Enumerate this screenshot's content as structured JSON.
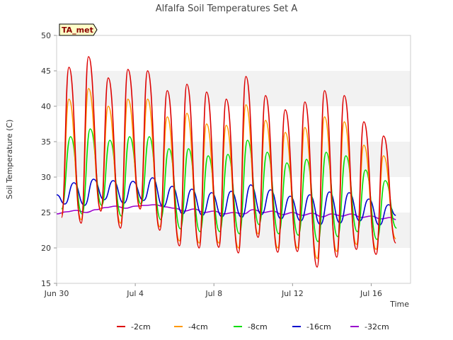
{
  "chart_data": {
    "type": "line",
    "title": "Alfalfa Soil Temperatures Set A",
    "xlabel": "Time",
    "ylabel": "Soil Temperature (C)",
    "badge": "TA_met",
    "ylim": [
      15,
      50
    ],
    "xlim": [
      "2019-06-30",
      "2019-07-18"
    ],
    "yticks": [
      15,
      20,
      25,
      30,
      35,
      40,
      45,
      50
    ],
    "xticks": [
      {
        "label": "Jun 30",
        "date": "2019-06-30"
      },
      {
        "label": "Jul 4",
        "date": "2019-07-04"
      },
      {
        "label": "Jul 8",
        "date": "2019-07-08"
      },
      {
        "label": "Jul 12",
        "date": "2019-07-12"
      },
      {
        "label": "Jul 16",
        "date": "2019-07-16"
      }
    ],
    "grid": "alternating horizontal bands",
    "legend_position": "bottom",
    "series": [
      {
        "name": "-2cm",
        "color": "#dd0000",
        "data": [
          [
            "2019-06-30T06:00",
            24.3
          ],
          [
            "2019-06-30T15:00",
            45.5
          ],
          [
            "2019-07-01T06:00",
            23.5
          ],
          [
            "2019-07-01T15:00",
            47.0
          ],
          [
            "2019-07-02T06:00",
            25.2
          ],
          [
            "2019-07-02T15:00",
            44.0
          ],
          [
            "2019-07-03T06:00",
            22.8
          ],
          [
            "2019-07-03T15:00",
            45.2
          ],
          [
            "2019-07-04T06:00",
            25.5
          ],
          [
            "2019-07-04T15:00",
            45.0
          ],
          [
            "2019-07-05T06:00",
            22.5
          ],
          [
            "2019-07-05T15:00",
            42.2
          ],
          [
            "2019-07-06T06:00",
            20.3
          ],
          [
            "2019-07-06T15:00",
            43.1
          ],
          [
            "2019-07-07T06:00",
            20.0
          ],
          [
            "2019-07-07T15:00",
            42.0
          ],
          [
            "2019-07-08T06:00",
            20.1
          ],
          [
            "2019-07-08T15:00",
            41.0
          ],
          [
            "2019-07-09T06:00",
            19.3
          ],
          [
            "2019-07-09T15:00",
            44.2
          ],
          [
            "2019-07-10T06:00",
            21.5
          ],
          [
            "2019-07-10T15:00",
            41.5
          ],
          [
            "2019-07-11T06:00",
            19.4
          ],
          [
            "2019-07-11T15:00",
            39.5
          ],
          [
            "2019-07-12T06:00",
            19.5
          ],
          [
            "2019-07-12T15:00",
            40.6
          ],
          [
            "2019-07-13T06:00",
            17.3
          ],
          [
            "2019-07-13T15:00",
            42.2
          ],
          [
            "2019-07-14T06:00",
            18.7
          ],
          [
            "2019-07-14T15:00",
            41.5
          ],
          [
            "2019-07-15T06:00",
            19.8
          ],
          [
            "2019-07-15T15:00",
            37.8
          ],
          [
            "2019-07-16T06:00",
            19.1
          ],
          [
            "2019-07-16T15:00",
            35.8
          ],
          [
            "2019-07-17T06:00",
            20.7
          ]
        ]
      },
      {
        "name": "-4cm",
        "color": "#ff9900",
        "data": [
          [
            "2019-06-30T06:00",
            24.8
          ],
          [
            "2019-06-30T15:00",
            41.0
          ],
          [
            "2019-07-01T06:00",
            24.0
          ],
          [
            "2019-07-01T15:00",
            42.5
          ],
          [
            "2019-07-02T06:00",
            25.5
          ],
          [
            "2019-07-02T15:00",
            40.0
          ],
          [
            "2019-07-03T06:00",
            23.5
          ],
          [
            "2019-07-03T15:00",
            41.0
          ],
          [
            "2019-07-04T06:00",
            25.8
          ],
          [
            "2019-07-04T15:00",
            41.0
          ],
          [
            "2019-07-05T06:00",
            23.0
          ],
          [
            "2019-07-05T15:00",
            38.5
          ],
          [
            "2019-07-06T06:00",
            21.0
          ],
          [
            "2019-07-06T15:00",
            39.0
          ],
          [
            "2019-07-07T06:00",
            20.7
          ],
          [
            "2019-07-07T15:00",
            37.5
          ],
          [
            "2019-07-08T06:00",
            20.7
          ],
          [
            "2019-07-08T15:00",
            37.3
          ],
          [
            "2019-07-09T06:00",
            20.0
          ],
          [
            "2019-07-09T15:00",
            40.2
          ],
          [
            "2019-07-10T06:00",
            22.0
          ],
          [
            "2019-07-10T15:00",
            38.0
          ],
          [
            "2019-07-11T06:00",
            20.0
          ],
          [
            "2019-07-11T15:00",
            36.3
          ],
          [
            "2019-07-12T06:00",
            20.0
          ],
          [
            "2019-07-12T15:00",
            37.0
          ],
          [
            "2019-07-13T06:00",
            18.5
          ],
          [
            "2019-07-13T15:00",
            38.5
          ],
          [
            "2019-07-14T06:00",
            19.5
          ],
          [
            "2019-07-14T15:00",
            37.8
          ],
          [
            "2019-07-15T06:00",
            20.5
          ],
          [
            "2019-07-15T15:00",
            34.5
          ],
          [
            "2019-07-16T06:00",
            19.8
          ],
          [
            "2019-07-16T15:00",
            33.0
          ],
          [
            "2019-07-17T06:00",
            21.3
          ]
        ]
      },
      {
        "name": "-8cm",
        "color": "#00dd00",
        "data": [
          [
            "2019-06-30T06:00",
            25.5
          ],
          [
            "2019-06-30T17:00",
            35.7
          ],
          [
            "2019-07-01T07:00",
            24.8
          ],
          [
            "2019-07-01T17:00",
            36.8
          ],
          [
            "2019-07-02T07:00",
            26.0
          ],
          [
            "2019-07-02T17:00",
            35.2
          ],
          [
            "2019-07-03T07:00",
            24.5
          ],
          [
            "2019-07-03T17:00",
            35.7
          ],
          [
            "2019-07-04T07:00",
            26.2
          ],
          [
            "2019-07-04T17:00",
            35.7
          ],
          [
            "2019-07-05T07:00",
            24.0
          ],
          [
            "2019-07-05T17:00",
            34.0
          ],
          [
            "2019-07-06T07:00",
            22.7
          ],
          [
            "2019-07-06T17:00",
            34.0
          ],
          [
            "2019-07-07T07:00",
            22.3
          ],
          [
            "2019-07-07T17:00",
            33.0
          ],
          [
            "2019-07-08T07:00",
            22.3
          ],
          [
            "2019-07-08T17:00",
            33.2
          ],
          [
            "2019-07-09T07:00",
            22.0
          ],
          [
            "2019-07-09T17:00",
            35.2
          ],
          [
            "2019-07-10T07:00",
            23.3
          ],
          [
            "2019-07-10T17:00",
            33.5
          ],
          [
            "2019-07-11T07:00",
            22.0
          ],
          [
            "2019-07-11T17:00",
            32.0
          ],
          [
            "2019-07-12T07:00",
            21.8
          ],
          [
            "2019-07-12T17:00",
            32.5
          ],
          [
            "2019-07-13T07:00",
            20.9
          ],
          [
            "2019-07-13T17:00",
            33.5
          ],
          [
            "2019-07-14T07:00",
            21.6
          ],
          [
            "2019-07-14T17:00",
            33.0
          ],
          [
            "2019-07-15T07:00",
            22.3
          ],
          [
            "2019-07-15T17:00",
            31.0
          ],
          [
            "2019-07-16T07:00",
            21.2
          ],
          [
            "2019-07-16T17:00",
            29.5
          ],
          [
            "2019-07-17T07:00",
            22.8
          ]
        ]
      },
      {
        "name": "-16cm",
        "color": "#0000cc",
        "data": [
          [
            "2019-06-30T00:00",
            27.5
          ],
          [
            "2019-06-30T10:00",
            26.2
          ],
          [
            "2019-06-30T21:00",
            29.2
          ],
          [
            "2019-07-01T10:00",
            26.0
          ],
          [
            "2019-07-01T21:00",
            29.7
          ],
          [
            "2019-07-02T10:00",
            26.8
          ],
          [
            "2019-07-02T21:00",
            29.5
          ],
          [
            "2019-07-03T10:00",
            26.3
          ],
          [
            "2019-07-03T21:00",
            29.4
          ],
          [
            "2019-07-04T10:00",
            26.7
          ],
          [
            "2019-07-04T21:00",
            29.9
          ],
          [
            "2019-07-05T10:00",
            25.8
          ],
          [
            "2019-07-05T21:00",
            28.7
          ],
          [
            "2019-07-06T10:00",
            24.8
          ],
          [
            "2019-07-06T21:00",
            28.3
          ],
          [
            "2019-07-07T10:00",
            24.6
          ],
          [
            "2019-07-07T21:00",
            27.8
          ],
          [
            "2019-07-08T10:00",
            24.4
          ],
          [
            "2019-07-08T21:00",
            28.0
          ],
          [
            "2019-07-09T10:00",
            24.3
          ],
          [
            "2019-07-09T21:00",
            28.9
          ],
          [
            "2019-07-10T10:00",
            24.7
          ],
          [
            "2019-07-10T21:00",
            28.2
          ],
          [
            "2019-07-11T10:00",
            24.1
          ],
          [
            "2019-07-11T21:00",
            27.3
          ],
          [
            "2019-07-12T10:00",
            23.8
          ],
          [
            "2019-07-12T21:00",
            27.5
          ],
          [
            "2019-07-13T10:00",
            23.3
          ],
          [
            "2019-07-13T21:00",
            27.9
          ],
          [
            "2019-07-14T10:00",
            23.5
          ],
          [
            "2019-07-14T21:00",
            27.8
          ],
          [
            "2019-07-15T10:00",
            23.8
          ],
          [
            "2019-07-15T21:00",
            26.9
          ],
          [
            "2019-07-16T10:00",
            23.2
          ],
          [
            "2019-07-16T21:00",
            26.1
          ],
          [
            "2019-07-17T06:00",
            24.6
          ]
        ]
      },
      {
        "name": "-32cm",
        "color": "#9900cc",
        "data": [
          [
            "2019-06-30T00:00",
            24.8
          ],
          [
            "2019-06-30T12:00",
            25.1
          ],
          [
            "2019-07-01T00:00",
            25.3
          ],
          [
            "2019-07-01T12:00",
            25.0
          ],
          [
            "2019-07-02T00:00",
            25.4
          ],
          [
            "2019-07-02T12:00",
            25.7
          ],
          [
            "2019-07-03T00:00",
            25.9
          ],
          [
            "2019-07-03T12:00",
            25.6
          ],
          [
            "2019-07-04T00:00",
            25.9
          ],
          [
            "2019-07-04T12:00",
            26.0
          ],
          [
            "2019-07-05T00:00",
            26.1
          ],
          [
            "2019-07-05T12:00",
            25.8
          ],
          [
            "2019-07-06T00:00",
            25.6
          ],
          [
            "2019-07-06T12:00",
            25.2
          ],
          [
            "2019-07-07T00:00",
            25.5
          ],
          [
            "2019-07-07T12:00",
            25.0
          ],
          [
            "2019-07-08T00:00",
            25.2
          ],
          [
            "2019-07-08T12:00",
            24.8
          ],
          [
            "2019-07-09T00:00",
            25.0
          ],
          [
            "2019-07-09T12:00",
            24.8
          ],
          [
            "2019-07-10T00:00",
            25.4
          ],
          [
            "2019-07-10T12:00",
            25.0
          ],
          [
            "2019-07-11T00:00",
            25.2
          ],
          [
            "2019-07-11T12:00",
            24.7
          ],
          [
            "2019-07-12T00:00",
            25.0
          ],
          [
            "2019-07-12T12:00",
            24.6
          ],
          [
            "2019-07-13T00:00",
            24.9
          ],
          [
            "2019-07-13T12:00",
            24.4
          ],
          [
            "2019-07-14T00:00",
            24.8
          ],
          [
            "2019-07-14T12:00",
            24.5
          ],
          [
            "2019-07-15T00:00",
            24.8
          ],
          [
            "2019-07-15T12:00",
            24.3
          ],
          [
            "2019-07-16T00:00",
            24.5
          ],
          [
            "2019-07-16T12:00",
            24.1
          ],
          [
            "2019-07-17T00:00",
            24.3
          ],
          [
            "2019-07-17T06:00",
            24.0
          ]
        ]
      }
    ]
  }
}
